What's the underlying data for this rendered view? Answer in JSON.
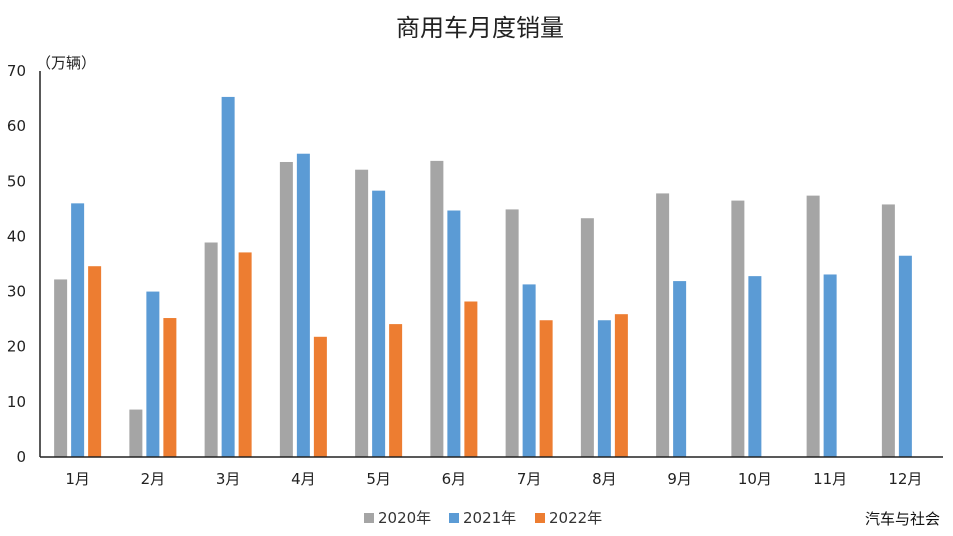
{
  "chart_data": {
    "type": "bar",
    "title": "商用车月度销量",
    "unit_label": "（万辆）",
    "categories": [
      "1月",
      "2月",
      "3月",
      "4月",
      "5月",
      "6月",
      "7月",
      "8月",
      "9月",
      "10月",
      "11月",
      "12月"
    ],
    "series": [
      {
        "name": "2020年",
        "color": "#A5A5A5",
        "values": [
          32.2,
          8.6,
          38.9,
          53.5,
          52.1,
          53.7,
          44.9,
          43.3,
          47.8,
          46.5,
          47.4,
          45.8
        ]
      },
      {
        "name": "2021年",
        "color": "#5B9BD5",
        "values": [
          46.0,
          30.0,
          65.3,
          55.0,
          48.3,
          44.7,
          31.3,
          24.8,
          31.9,
          32.8,
          33.1,
          36.5
        ]
      },
      {
        "name": "2022年",
        "color": "#ED7D31",
        "values": [
          34.6,
          25.2,
          37.1,
          21.8,
          24.1,
          28.2,
          24.8,
          25.9,
          null,
          null,
          null,
          null
        ]
      }
    ],
    "ylim": [
      0,
      70
    ],
    "yticks": [
      0,
      10,
      20,
      30,
      40,
      50,
      60,
      70
    ],
    "legend_position": "bottom-center",
    "grid": false
  },
  "source_label": "汽车与社会"
}
